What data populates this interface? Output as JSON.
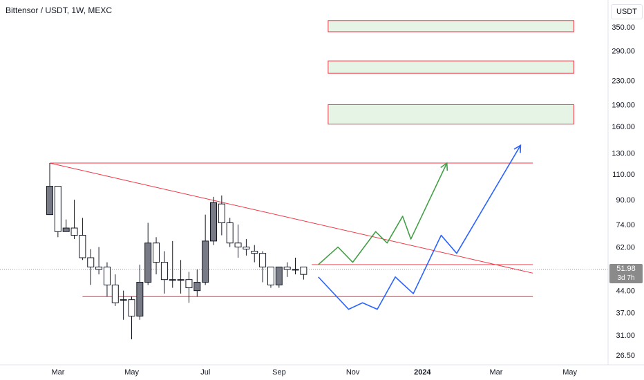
{
  "header": {
    "title": "Bittensor / USDT, 1W, MEXC",
    "unit": "USDT"
  },
  "price_tag": {
    "price": "51.98",
    "countdown": "3d 7h"
  },
  "chart_data": {
    "type": "candlestick",
    "title": "Bittensor / USDT, 1W, MEXC",
    "y_scale": "log",
    "y_ticks": [
      350,
      290,
      230,
      190,
      160,
      130,
      110,
      90,
      74,
      62,
      44,
      37,
      31,
      26.5
    ],
    "y_tick_labels": [
      "350.00",
      "290.00",
      "230.00",
      "190.00",
      "160.00",
      "130.00",
      "110.00",
      "90.00",
      "74.00",
      "62.00",
      "44.00",
      "37.00",
      "31.00",
      "26.50"
    ],
    "x_ticks": [
      {
        "label": "Mar",
        "week": 0,
        "bold": false
      },
      {
        "label": "May",
        "week": 9,
        "bold": false
      },
      {
        "label": "Jul",
        "week": 18,
        "bold": false
      },
      {
        "label": "Sep",
        "week": 27,
        "bold": false
      },
      {
        "label": "Nov",
        "week": 36,
        "bold": false
      },
      {
        "label": "2024",
        "week": 44.5,
        "bold": true
      },
      {
        "label": "Mar",
        "week": 53.5,
        "bold": false
      },
      {
        "label": "May",
        "week": 62.5,
        "bold": false
      }
    ],
    "current_price": 51.98,
    "candles": [
      {
        "o": 80,
        "h": 120,
        "l": 80,
        "c": 100
      },
      {
        "o": 100,
        "h": 100,
        "l": 67,
        "c": 70
      },
      {
        "o": 70,
        "h": 77,
        "l": 70,
        "c": 72
      },
      {
        "o": 72,
        "h": 90,
        "l": 66,
        "c": 68
      },
      {
        "o": 68,
        "h": 78,
        "l": 56,
        "c": 57
      },
      {
        "o": 57,
        "h": 61,
        "l": 46,
        "c": 53
      },
      {
        "o": 53,
        "h": 62,
        "l": 50,
        "c": 52
      },
      {
        "o": 53,
        "h": 55,
        "l": 42,
        "c": 46
      },
      {
        "o": 46,
        "h": 50,
        "l": 39,
        "c": 40
      },
      {
        "o": 41,
        "h": 44,
        "l": 35,
        "c": 41
      },
      {
        "o": 41,
        "h": 42,
        "l": 30,
        "c": 36
      },
      {
        "o": 36,
        "h": 54,
        "l": 35,
        "c": 47
      },
      {
        "o": 47,
        "h": 75,
        "l": 46,
        "c": 64
      },
      {
        "o": 64,
        "h": 67,
        "l": 50,
        "c": 55
      },
      {
        "o": 55,
        "h": 60,
        "l": 43,
        "c": 48
      },
      {
        "o": 48,
        "h": 65,
        "l": 45,
        "c": 48
      },
      {
        "o": 48,
        "h": 56,
        "l": 43,
        "c": 48
      },
      {
        "o": 48,
        "h": 51,
        "l": 40,
        "c": 45
      },
      {
        "o": 44,
        "h": 52,
        "l": 42,
        "c": 47
      },
      {
        "o": 47,
        "h": 80,
        "l": 46,
        "c": 65
      },
      {
        "o": 65,
        "h": 92,
        "l": 63,
        "c": 88
      },
      {
        "o": 87,
        "h": 93,
        "l": 68,
        "c": 75
      },
      {
        "o": 75,
        "h": 78,
        "l": 62,
        "c": 64
      },
      {
        "o": 64,
        "h": 74,
        "l": 57,
        "c": 62
      },
      {
        "o": 62,
        "h": 66,
        "l": 58,
        "c": 61
      },
      {
        "o": 60,
        "h": 63,
        "l": 55,
        "c": 59
      },
      {
        "o": 59,
        "h": 60,
        "l": 47,
        "c": 53
      },
      {
        "o": 53,
        "h": 53,
        "l": 45,
        "c": 46
      },
      {
        "o": 46,
        "h": 53,
        "l": 45,
        "c": 53
      },
      {
        "o": 53,
        "h": 55,
        "l": 49,
        "c": 52
      },
      {
        "o": 52,
        "h": 57,
        "l": 50,
        "c": 52
      },
      {
        "o": 53,
        "h": 53,
        "l": 48,
        "c": 50
      }
    ],
    "trendlines": [
      {
        "color": "#f23645",
        "from": {
          "week": 0,
          "price": 120
        },
        "to": {
          "week": 59,
          "price": 120
        }
      },
      {
        "color": "#f23645",
        "from": {
          "week": 0,
          "price": 120
        },
        "to": {
          "week": 59,
          "price": 50.5
        }
      },
      {
        "color": "#f23645",
        "from": {
          "week": 32,
          "price": 54
        },
        "to": {
          "week": 59,
          "price": 54
        }
      },
      {
        "color": "#f23645",
        "from": {
          "week": 4,
          "price": 42
        },
        "to": {
          "week": 59,
          "price": 42
        }
      }
    ],
    "zones": [
      {
        "from_week": 34,
        "to_week": 64,
        "low": 337,
        "high": 368,
        "fill": "#e6f4e6",
        "stroke": "#f23645"
      },
      {
        "from_week": 34,
        "to_week": 64,
        "low": 243,
        "high": 268,
        "fill": "#e6f4e6",
        "stroke": "#f23645"
      },
      {
        "from_week": 34,
        "to_week": 64,
        "low": 163,
        "high": 190,
        "fill": "#e6f4e6",
        "stroke": "#f23645"
      }
    ],
    "projections": [
      {
        "name": "bullish",
        "color": "#43a047",
        "points": [
          [
            32.8,
            54
          ],
          [
            35.2,
            62
          ],
          [
            37,
            55
          ],
          [
            39.8,
            70
          ],
          [
            41.2,
            64
          ],
          [
            43.1,
            79
          ],
          [
            44.1,
            66
          ],
          [
            48.5,
            120
          ]
        ]
      },
      {
        "name": "bearish",
        "color": "#2962ff",
        "points": [
          [
            32.8,
            49
          ],
          [
            36.5,
            38
          ],
          [
            38.2,
            40
          ],
          [
            40,
            38
          ],
          [
            42.2,
            49
          ],
          [
            44.4,
            43
          ],
          [
            47.8,
            68
          ],
          [
            49.7,
            59
          ],
          [
            57.5,
            138
          ]
        ]
      }
    ]
  }
}
